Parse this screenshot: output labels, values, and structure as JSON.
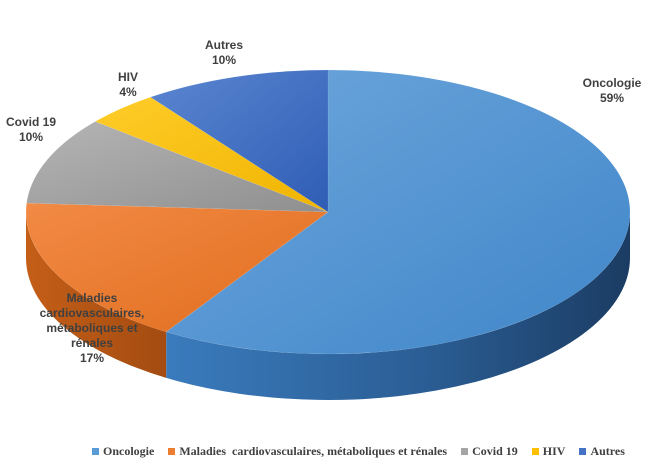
{
  "chart_data": {
    "type": "pie",
    "style": "3d",
    "slices": [
      {
        "name": "Oncologie",
        "value": 59,
        "percent_label": "59%",
        "color": "#5b9bd5"
      },
      {
        "name": "Maladies cardiovasculaires, métaboliques et rénales",
        "value": 17,
        "percent_label": "17%",
        "color": "#ed7d31"
      },
      {
        "name": "Covid 19",
        "value": 10,
        "percent_label": "10%",
        "color": "#a5a5a5"
      },
      {
        "name": "HIV",
        "value": 4,
        "percent_label": "4%",
        "color": "#ffc000"
      },
      {
        "name": "Autres",
        "value": 10,
        "percent_label": "10%",
        "color": "#4472c4"
      }
    ],
    "data_label_lines": {
      "Oncologie": [
        "Oncologie"
      ],
      "Maladies cardiovasculaires, métaboliques et rénales": [
        "Maladies",
        "cardiovasculaires,",
        "métaboliques et",
        "rénales"
      ],
      "Covid 19": [
        "Covid 19"
      ],
      "HIV": [
        "HIV"
      ],
      "Autres": [
        "Autres"
      ]
    },
    "legend": {
      "position": "bottom",
      "entries": [
        "Oncologie",
        "Maladies  cardiovasculaires, métaboliques et rénales",
        "Covid 19",
        "HIV",
        "Autres"
      ]
    }
  }
}
